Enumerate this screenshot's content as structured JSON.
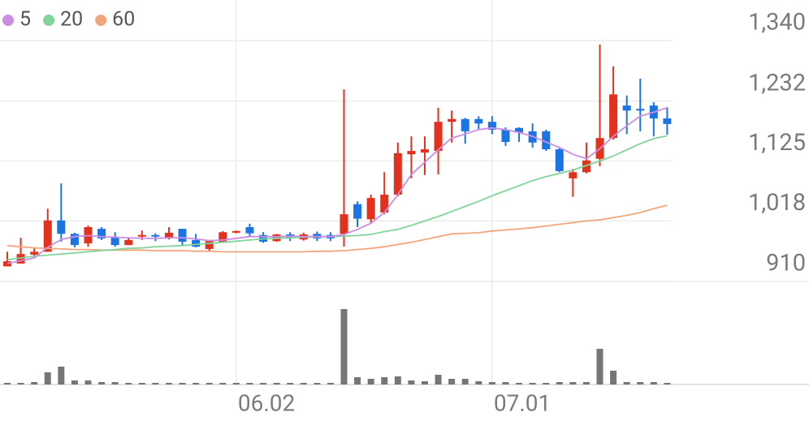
{
  "chart_data": {
    "type": "candlestick",
    "categories": [
      null,
      null,
      null,
      null,
      null,
      null,
      null,
      null,
      null,
      null,
      null,
      null,
      null,
      null,
      null,
      null,
      null,
      "06.02",
      null,
      null,
      null,
      null,
      null,
      null,
      null,
      null,
      null,
      null,
      null,
      null,
      null,
      null,
      null,
      null,
      null,
      null,
      "07.01",
      null,
      null,
      null,
      null,
      null,
      null,
      null,
      null,
      null,
      null,
      null,
      null,
      null
    ],
    "open": [
      937,
      942,
      958,
      963,
      1019,
      995,
      978,
      1004,
      990,
      975,
      990,
      993,
      988,
      1004,
      984,
      968,
      981,
      997,
      1007,
      993,
      982,
      994,
      985,
      995,
      993,
      995,
      1048,
      1021,
      1033,
      1065,
      1137,
      1140,
      1143,
      1195,
      1200,
      1200,
      1195,
      1181,
      1184,
      1178,
      1178,
      1146,
      1094,
      1105,
      1129,
      1166,
      1224,
      1218,
      1224,
      1201
    ],
    "high": [
      963,
      988,
      971,
      1040,
      1085,
      997,
      1010,
      1007,
      998,
      987,
      1001,
      996,
      1007,
      1004,
      995,
      984,
      1000,
      1001,
      1013,
      998,
      995,
      998,
      997,
      999,
      998,
      1253,
      1053,
      1065,
      1105,
      1158,
      1169,
      1169,
      1220,
      1215,
      1202,
      1205,
      1205,
      1185,
      1185,
      1192,
      1181,
      1149,
      1111,
      1158,
      1333,
      1294,
      1242,
      1272,
      1230,
      1221
    ],
    "low": [
      937,
      942,
      952,
      963,
      981,
      971,
      972,
      984,
      972,
      975,
      984,
      982,
      985,
      975,
      971,
      965,
      979,
      996,
      991,
      979,
      981,
      982,
      983,
      982,
      982,
      972,
      1007,
      1014,
      1030,
      1062,
      1094,
      1100,
      1101,
      1158,
      1156,
      1181,
      1173,
      1152,
      1159,
      1149,
      1143,
      1105,
      1061,
      1103,
      1116,
      1163,
      1173,
      1178,
      1169,
      1172
    ],
    "close": [
      946,
      959,
      963,
      1019,
      995,
      975,
      1007,
      987,
      975,
      984,
      993,
      990,
      997,
      981,
      972,
      982,
      998,
      1000,
      996,
      981,
      994,
      988,
      994,
      987,
      987,
      1030,
      1022,
      1059,
      1065,
      1139,
      1143,
      1146,
      1195,
      1200,
      1178,
      1192,
      1181,
      1159,
      1176,
      1158,
      1146,
      1107,
      1105,
      1126,
      1166,
      1244,
      1215,
      1215,
      1201,
      1191
    ],
    "up_color": "#e2321d",
    "down_color": "#1b74e4",
    "ylim": [
      910,
      1340
    ],
    "yticks": [
      {
        "value": 910,
        "label": "910"
      },
      {
        "value": 1018,
        "label": "1,018"
      },
      {
        "value": 1125,
        "label": "1,125"
      },
      {
        "value": 1232,
        "label": "1,232"
      },
      {
        "value": 1340,
        "label": "1,340"
      }
    ],
    "grid": true,
    "series": [
      {
        "name": "5",
        "color": "#cc8de2",
        "values": [
          942,
          947,
          952,
          971,
          985,
          990,
          992,
          990,
          989,
          988,
          987,
          987,
          988,
          988,
          986,
          983,
          984,
          987,
          990,
          990,
          990,
          991,
          990,
          990,
          990,
          994,
          1003,
          1014,
          1033,
          1065,
          1101,
          1123,
          1145,
          1166,
          1173,
          1181,
          1184,
          1181,
          1176,
          1169,
          1159,
          1149,
          1137,
          1129,
          1147,
          1169,
          1188,
          1205,
          1212,
          1220
        ]
      },
      {
        "name": "20",
        "color": "#80d49c",
        "values": [
          949,
          952,
          955,
          957,
          959,
          961,
          963,
          965,
          967,
          969,
          970,
          972,
          973,
          974,
          976,
          978,
          980,
          982,
          984,
          986,
          987,
          988,
          989,
          990,
          990,
          991,
          992,
          994,
          999,
          1003,
          1010,
          1018,
          1026,
          1035,
          1044,
          1053,
          1063,
          1072,
          1081,
          1090,
          1097,
          1103,
          1109,
          1117,
          1125,
          1134,
          1145,
          1156,
          1165,
          1170
        ]
      },
      {
        "name": "60",
        "color": "#f2a57c",
        "values": [
          974,
          972,
          970,
          969,
          968,
          967,
          967,
          966,
          966,
          966,
          966,
          965,
          965,
          965,
          964,
          964,
          963,
          963,
          963,
          963,
          963,
          963,
          963,
          964,
          964,
          965,
          967,
          969,
          972,
          976,
          980,
          985,
          990,
          995,
          996,
          997,
          1000,
          1002,
          1004,
          1006,
          1009,
          1012,
          1015,
          1018,
          1020,
          1024,
          1028,
          1033,
          1040,
          1046
        ]
      }
    ],
    "volume": {
      "color": "#767676",
      "ylim": [
        0,
        100
      ],
      "values": [
        2,
        2,
        3,
        15,
        22,
        5,
        5,
        3,
        3,
        2,
        2,
        2,
        2,
        2,
        2,
        2,
        2,
        2,
        2,
        2,
        2,
        2,
        2,
        2,
        2,
        93,
        9,
        7,
        9,
        10,
        5,
        4,
        12,
        7,
        7,
        4,
        3,
        3,
        2,
        2,
        2,
        3,
        3,
        3,
        44,
        17,
        3,
        3,
        3,
        2
      ]
    }
  }
}
